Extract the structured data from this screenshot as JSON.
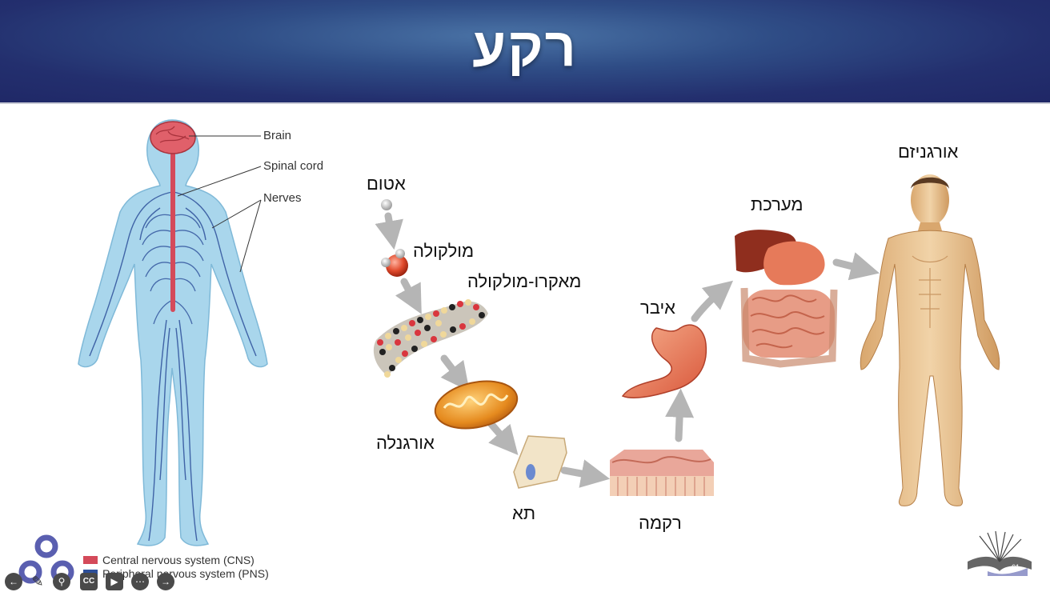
{
  "slide": {
    "title": "רקע"
  },
  "diagram": {
    "nervous_system": {
      "labels": {
        "brain": "Brain",
        "spinal_cord": "Spinal cord",
        "nerves": "Nerves"
      },
      "legend": [
        {
          "label": "Central nervous system (CNS)",
          "color": "#d44a5a"
        },
        {
          "label": "Peripheral nervous system (PNS)",
          "color": "#2d4f9a"
        }
      ]
    },
    "hierarchy": {
      "atom": "אטום",
      "molecule": "מולקולה",
      "macromolecule": "מאקרו-מולקולה",
      "organelle": "אורגנלה",
      "cell": "תא",
      "tissue": "רקמה",
      "organ": "איבר",
      "system": "מערכת",
      "organism": "אורגניזם"
    }
  },
  "player": {
    "slide_number": "61",
    "controls": [
      "back-icon",
      "pen-icon",
      "zoom-icon",
      "captions-icon",
      "video-icon",
      "more-icon",
      "forward-icon"
    ],
    "captions_label": "CC"
  },
  "colors": {
    "header_dark": "#1f2766",
    "header_light": "#4a73a6",
    "body_blue": "#a9d6ec",
    "nerve_blue": "#2d4f9a",
    "cns_red": "#d44a5a",
    "arrow_gray": "#b5b5b5"
  }
}
